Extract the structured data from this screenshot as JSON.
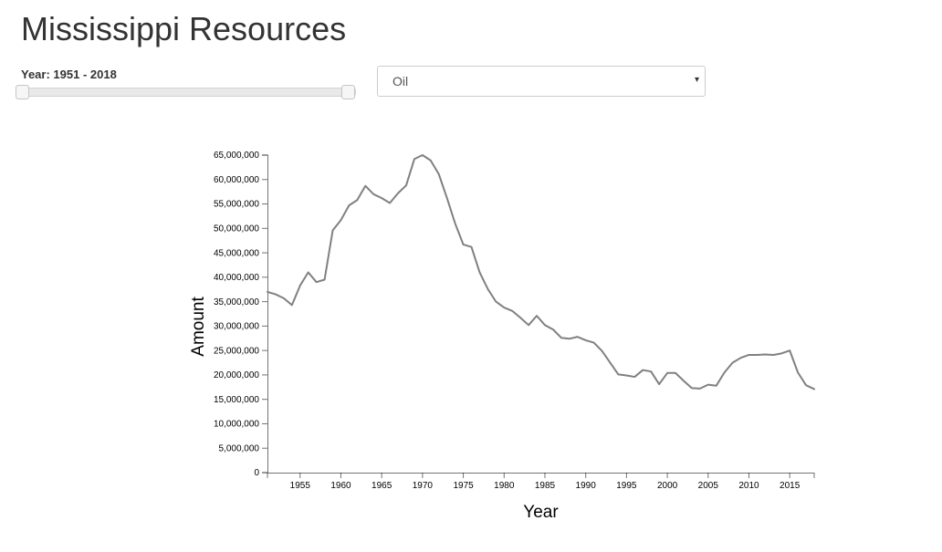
{
  "header": {
    "title": "Mississippi Resources"
  },
  "controls": {
    "year_label": "Year: 1951 - 2018",
    "resource_select": {
      "value": "Oil",
      "caret": "▾"
    }
  },
  "chart_data": {
    "type": "line",
    "xlabel": "Year",
    "ylabel": "Amount",
    "xlim": [
      1951,
      2018
    ],
    "ylim": [
      0,
      65000000
    ],
    "x_ticks": [
      1955,
      1960,
      1965,
      1970,
      1975,
      1980,
      1985,
      1990,
      1995,
      2000,
      2005,
      2010,
      2015
    ],
    "y_ticks": [
      "0",
      "5,000,000",
      "10,000,000",
      "15,000,000",
      "20,000,000",
      "25,000,000",
      "30,000,000",
      "35,000,000",
      "40,000,000",
      "45,000,000",
      "50,000,000",
      "55,000,000",
      "60,000,000",
      "65,000,000"
    ],
    "y_tick_values": [
      0,
      5000000,
      10000000,
      15000000,
      20000000,
      25000000,
      30000000,
      35000000,
      40000000,
      45000000,
      50000000,
      55000000,
      60000000,
      65000000
    ],
    "line_color": "#808080",
    "grid": false,
    "series": [
      {
        "x": [
          1951,
          1952,
          1953,
          1954,
          1955,
          1956,
          1957,
          1958,
          1959,
          1960,
          1961,
          1962,
          1963,
          1964,
          1965,
          1966,
          1967,
          1968,
          1969,
          1970,
          1971,
          1972,
          1973,
          1974,
          1975,
          1976,
          1977,
          1978,
          1979,
          1980,
          1981,
          1982,
          1983,
          1984,
          1985,
          1986,
          1987,
          1988,
          1989,
          1990,
          1991,
          1992,
          1993,
          1994,
          1995,
          1996,
          1997,
          1998,
          1999,
          2000,
          2001,
          2002,
          2003,
          2004,
          2005,
          2006,
          2007,
          2008,
          2009,
          2010,
          2011,
          2012,
          2013,
          2014,
          2015,
          2016,
          2017,
          2018
        ],
        "values": [
          37000000,
          36500000,
          35700000,
          34300000,
          38300000,
          41000000,
          39000000,
          39500000,
          49600000,
          51700000,
          54700000,
          55800000,
          58700000,
          57000000,
          56200000,
          55200000,
          57200000,
          58800000,
          64200000,
          65000000,
          63900000,
          61100000,
          56200000,
          51000000,
          46700000,
          46200000,
          41000000,
          37600000,
          35000000,
          33800000,
          33100000,
          31700000,
          30200000,
          32100000,
          30200000,
          29300000,
          27600000,
          27400000,
          27800000,
          27100000,
          26600000,
          24900000,
          22500000,
          20100000,
          19900000,
          19600000,
          21000000,
          20700000,
          18100000,
          20400000,
          20400000,
          18800000,
          17300000,
          17200000,
          18000000,
          17800000,
          20500000,
          22500000,
          23500000,
          24100000,
          24100000,
          24200000,
          24100000,
          24400000,
          25000000,
          20500000,
          17900000,
          17100000
        ]
      }
    ]
  }
}
